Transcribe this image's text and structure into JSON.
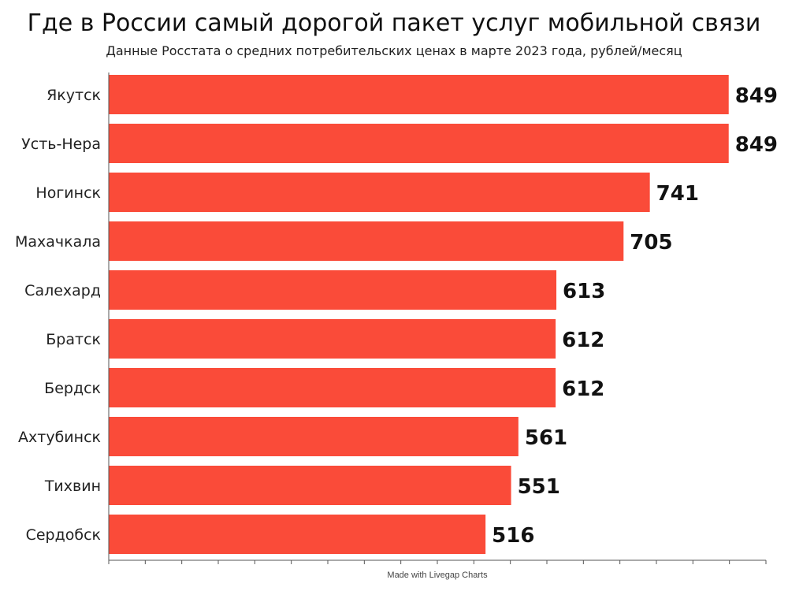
{
  "chart_data": {
    "type": "bar",
    "orientation": "horizontal",
    "title": "Где в России самый дорогой пакет услуг мобильной связи",
    "subtitle": "Данные Росстата о средних потребительских ценах в марте 2023 года, рублей/месяц",
    "categories": [
      "Якутск",
      "Усть-Нера",
      "Ногинск",
      "Махачкала",
      "Салехард",
      "Братск",
      "Бердск",
      "Ахтубинск",
      "Тихвин",
      "Сердобск"
    ],
    "values": [
      849,
      849,
      741,
      705,
      613,
      612,
      612,
      561,
      551,
      516
    ],
    "xlim": [
      0,
      900
    ],
    "xlabel": "",
    "ylabel": "",
    "grid": false,
    "legend": "none",
    "bar_color": "#fa4b39",
    "data_labels": true
  },
  "credit": "Made with Livegap Charts"
}
